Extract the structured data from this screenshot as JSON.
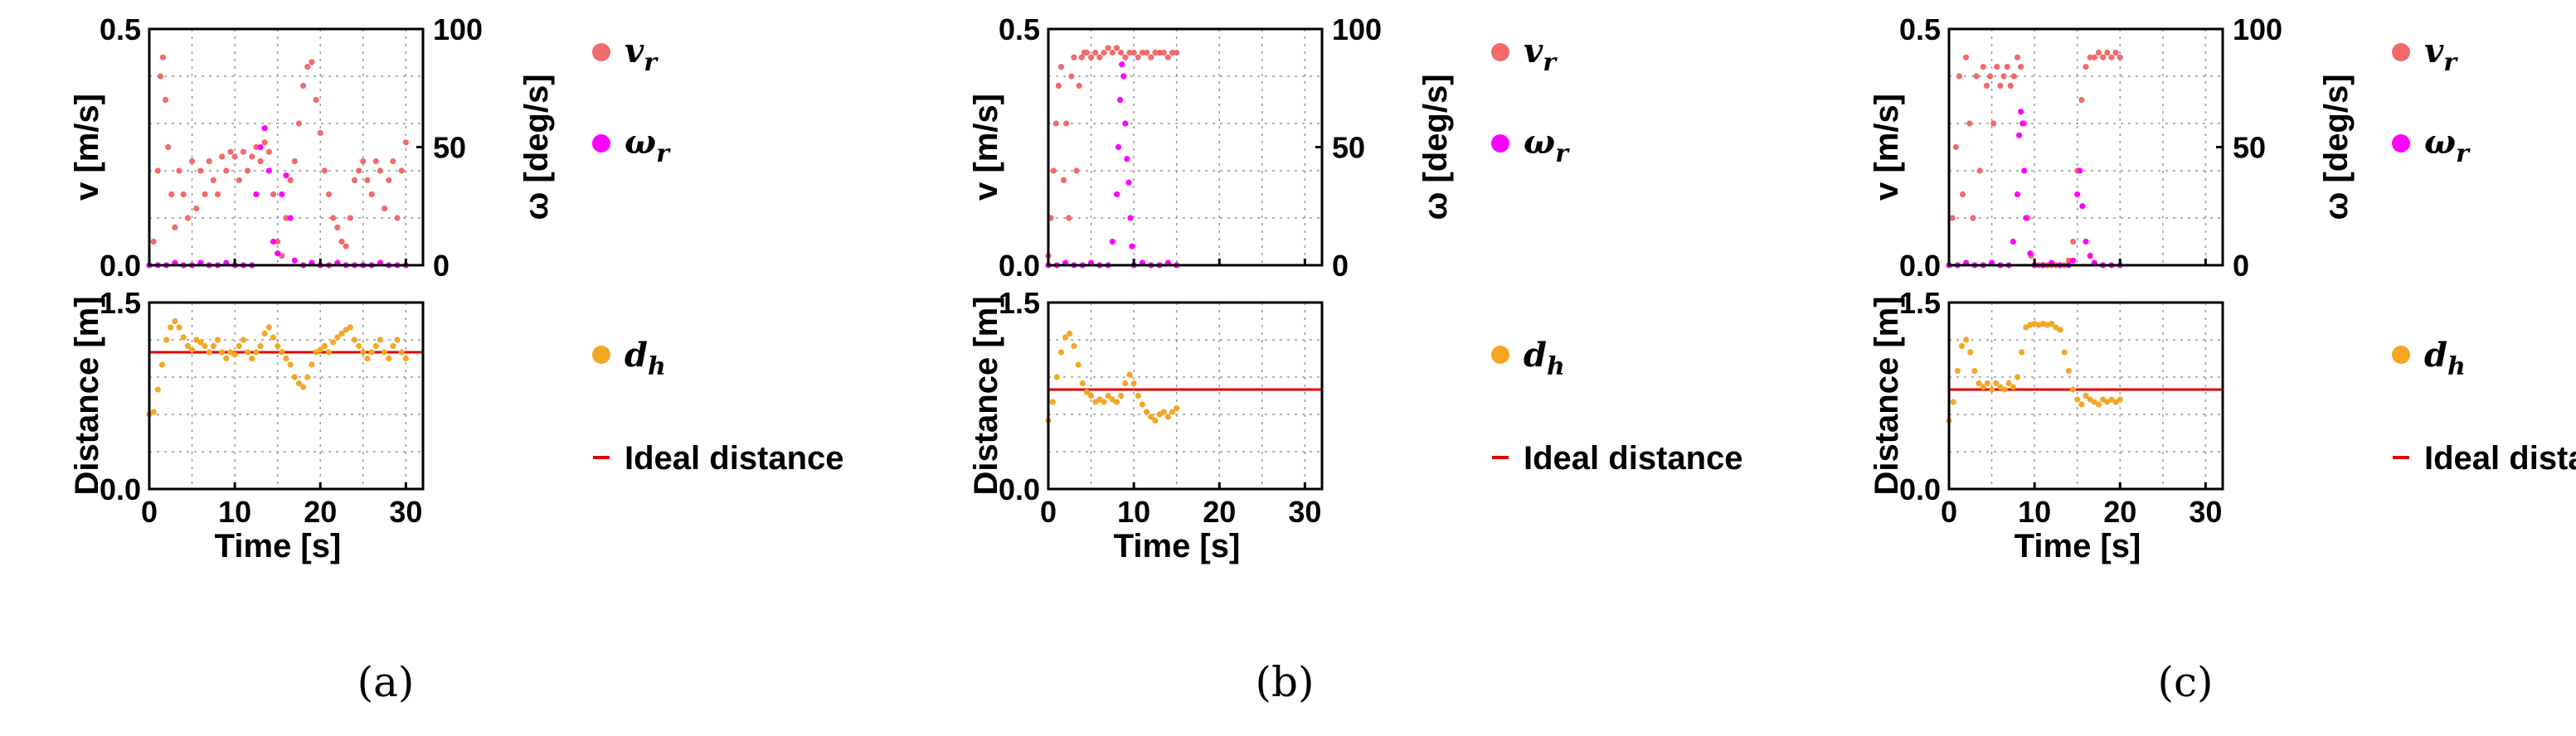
{
  "panels": [
    {
      "caption": "(a)",
      "top": {
        "type": "scatter",
        "xlim": [
          0,
          32
        ],
        "ylim_left": [
          0,
          0.5
        ],
        "ylim_right": [
          0,
          100
        ],
        "yticks_left": [
          "0.0",
          "0.5"
        ],
        "yticks_right": [
          "0",
          "50",
          "100"
        ],
        "ylabel_left": "v [m/s]",
        "ylabel_right": "ω [deg/s]",
        "series": [
          {
            "name": "v_r",
            "axis": "left",
            "color": "#f26a6a",
            "x": [
              0,
              0.5,
              1,
              1.3,
              1.6,
              1.9,
              2.2,
              2.6,
              3,
              3.5,
              4,
              4.5,
              5,
              5.5,
              6,
              6.5,
              7,
              7.5,
              8,
              8.5,
              9,
              9.5,
              10,
              10.5,
              11,
              11.5,
              12,
              12.5,
              13,
              13.5,
              14,
              14.5,
              15,
              15.5,
              16,
              16.5,
              17,
              17.5,
              18,
              18.5,
              19,
              19.5,
              20,
              20.5,
              21,
              21.5,
              22,
              22.5,
              23,
              23.5,
              24,
              24.5,
              25,
              25.5,
              26,
              26.5,
              27,
              27.5,
              28,
              28.5,
              29,
              29.5,
              30
            ],
            "y": [
              0,
              0.05,
              0.2,
              0.4,
              0.44,
              0.35,
              0.25,
              0.15,
              0.08,
              0.2,
              0.15,
              0.1,
              0.22,
              0.12,
              0.2,
              0.15,
              0.22,
              0.18,
              0.15,
              0.23,
              0.2,
              0.24,
              0.23,
              0.18,
              0.24,
              0.2,
              0.23,
              0.25,
              0.22,
              0.26,
              0.24,
              0.15,
              0.05,
              0.02,
              0.1,
              0.18,
              0.22,
              0.3,
              0.38,
              0.42,
              0.43,
              0.35,
              0.28,
              0.2,
              0.15,
              0.1,
              0.08,
              0.05,
              0.04,
              0.1,
              0.18,
              0.2,
              0.22,
              0.18,
              0.15,
              0.22,
              0.2,
              0.12,
              0.18,
              0.22,
              0.1,
              0.2,
              0.26
            ]
          },
          {
            "name": "ω_r",
            "axis": "right",
            "color": "#ff00ff",
            "x": [
              0,
              1,
              2,
              3,
              4,
              5,
              6,
              7,
              8,
              9,
              10,
              11,
              12,
              12.5,
              13,
              13.5,
              14,
              14.5,
              15,
              15.5,
              16,
              16.5,
              17,
              18,
              19,
              20,
              21,
              22,
              23,
              24,
              25,
              26,
              27,
              28,
              29,
              30
            ],
            "y": [
              0,
              0,
              0,
              1,
              0,
              0,
              1,
              0,
              0,
              1,
              0,
              0,
              0,
              30,
              50,
              58,
              40,
              10,
              5,
              30,
              38,
              20,
              2,
              0,
              1,
              0,
              0,
              1,
              0,
              0,
              0,
              0,
              1,
              0,
              0,
              0
            ]
          }
        ],
        "legend": [
          "v_r",
          "ω_r"
        ]
      },
      "bottom": {
        "type": "scatter",
        "xlim": [
          0,
          32
        ],
        "ylim": [
          0,
          1.5
        ],
        "yticks": [
          "0.0",
          "1.5"
        ],
        "xticks": [
          "0",
          "10",
          "20",
          "30"
        ],
        "ylabel": "Distance [m]",
        "xlabel": "Time [s]",
        "ideal": 1.1,
        "series": [
          {
            "name": "d_h",
            "color": "#f5a623",
            "x": [
              0,
              0.5,
              1,
              1.5,
              2,
              2.5,
              3,
              3.5,
              4,
              4.5,
              5,
              5.5,
              6,
              6.5,
              7,
              7.5,
              8,
              8.5,
              9,
              9.5,
              10,
              10.5,
              11,
              11.5,
              12,
              12.5,
              13,
              13.5,
              14,
              14.5,
              15,
              15.5,
              16,
              16.5,
              17,
              17.5,
              18,
              18.5,
              19,
              19.5,
              20,
              20.5,
              21,
              21.5,
              22,
              22.5,
              23,
              23.5,
              24,
              24.5,
              25,
              25.5,
              26,
              26.5,
              27,
              27.5,
              28,
              28.5,
              29,
              29.5,
              30
            ],
            "y": [
              0.6,
              0.62,
              0.8,
              1.0,
              1.2,
              1.3,
              1.35,
              1.3,
              1.22,
              1.15,
              1.12,
              1.2,
              1.18,
              1.15,
              1.1,
              1.15,
              1.2,
              1.1,
              1.05,
              1.1,
              1.08,
              1.15,
              1.2,
              1.1,
              1.05,
              1.1,
              1.15,
              1.25,
              1.3,
              1.22,
              1.15,
              1.1,
              1.05,
              1.0,
              0.9,
              0.85,
              0.82,
              0.9,
              1.0,
              1.1,
              1.12,
              1.15,
              1.1,
              1.18,
              1.22,
              1.25,
              1.28,
              1.3,
              1.2,
              1.15,
              1.1,
              1.05,
              1.1,
              1.15,
              1.2,
              1.1,
              1.05,
              1.15,
              1.2,
              1.1,
              1.05
            ]
          }
        ],
        "legend": [
          "d_h",
          "Ideal distance"
        ]
      }
    },
    {
      "caption": "(b)",
      "top": {
        "type": "scatter",
        "xlim": [
          0,
          32
        ],
        "ylim_left": [
          0,
          0.5
        ],
        "ylim_right": [
          0,
          100
        ],
        "yticks_left": [
          "0.0",
          "0.5"
        ],
        "yticks_right": [
          "0",
          "50",
          "100"
        ],
        "ylabel_left": "v [m/s]",
        "ylabel_right": "ω [deg/s]",
        "series": [
          {
            "name": "v_r",
            "axis": "left",
            "color": "#f26a6a",
            "x": [
              0,
              0.3,
              0.6,
              0.9,
              1.2,
              1.5,
              1.8,
              2.1,
              2.4,
              2.7,
              3,
              3.3,
              3.6,
              3.9,
              4.2,
              4.5,
              5,
              5.5,
              6,
              6.5,
              7,
              7.5,
              8,
              8.5,
              9,
              9.5,
              10,
              10.5,
              11,
              11.5,
              12,
              12.5,
              13,
              13.5,
              14,
              14.5,
              15
            ],
            "y": [
              0.02,
              0.1,
              0.2,
              0.3,
              0.38,
              0.42,
              0.18,
              0.3,
              0.1,
              0.4,
              0.44,
              0.2,
              0.38,
              0.44,
              0.45,
              0.45,
              0.44,
              0.45,
              0.44,
              0.45,
              0.46,
              0.45,
              0.46,
              0.45,
              0.44,
              0.45,
              0.45,
              0.44,
              0.45,
              0.45,
              0.44,
              0.45,
              0.45,
              0.45,
              0.44,
              0.45,
              0.45
            ]
          },
          {
            "name": "ω_r",
            "axis": "right",
            "color": "#ff00ff",
            "x": [
              0,
              1,
              2,
              3,
              4,
              5,
              6,
              7,
              7.5,
              8,
              8.2,
              8.4,
              8.6,
              8.8,
              9,
              9.2,
              9.4,
              9.6,
              9.8,
              10,
              11,
              12,
              13,
              14,
              15
            ],
            "y": [
              0,
              0,
              1,
              0,
              0,
              1,
              0,
              0,
              10,
              30,
              50,
              70,
              85,
              80,
              60,
              45,
              35,
              20,
              8,
              0,
              1,
              0,
              0,
              1,
              0
            ]
          }
        ],
        "legend": [
          "v_r",
          "ω_r"
        ]
      },
      "bottom": {
        "type": "scatter",
        "xlim": [
          0,
          32
        ],
        "ylim": [
          0,
          1.5
        ],
        "yticks": [
          "0.0",
          "1.5"
        ],
        "xticks": [
          "0",
          "10",
          "20",
          "30"
        ],
        "ylabel": "Distance [m]",
        "xlabel": "Time [s]",
        "ideal": 0.8,
        "series": [
          {
            "name": "d_h",
            "color": "#f5a623",
            "x": [
              0,
              0.5,
              1,
              1.5,
              2,
              2.5,
              3,
              3.5,
              4,
              4.5,
              5,
              5.5,
              6,
              6.5,
              7,
              7.5,
              8,
              8.5,
              9,
              9.5,
              10,
              10.5,
              11,
              11.5,
              12,
              12.5,
              13,
              13.5,
              14,
              14.5,
              15
            ],
            "y": [
              0.55,
              0.7,
              0.9,
              1.1,
              1.22,
              1.25,
              1.15,
              1.0,
              0.85,
              0.78,
              0.75,
              0.7,
              0.72,
              0.7,
              0.75,
              0.72,
              0.7,
              0.75,
              0.85,
              0.92,
              0.85,
              0.75,
              0.68,
              0.62,
              0.58,
              0.55,
              0.6,
              0.62,
              0.58,
              0.62,
              0.65
            ]
          }
        ],
        "legend": [
          "d_h",
          "Ideal distance"
        ]
      }
    },
    {
      "caption": "(c)",
      "top": {
        "type": "scatter",
        "xlim": [
          0,
          32
        ],
        "ylim_left": [
          0,
          0.5
        ],
        "ylim_right": [
          0,
          100
        ],
        "yticks_left": [
          "0.0",
          "0.5"
        ],
        "yticks_right": [
          "0",
          "50",
          "100"
        ],
        "ylabel_left": "v [m/s]",
        "ylabel_right": "ω [deg/s]",
        "series": [
          {
            "name": "v_r",
            "axis": "left",
            "color": "#f26a6a",
            "x": [
              0,
              0.4,
              0.8,
              1.2,
              1.6,
              2,
              2.4,
              2.8,
              3.2,
              3.6,
              4,
              4.4,
              4.8,
              5.2,
              5.6,
              6,
              6.4,
              6.8,
              7.2,
              7.6,
              8,
              8.4,
              8.8,
              9.2,
              9.6,
              10,
              10.5,
              11,
              11.5,
              12,
              12.5,
              13,
              13.5,
              14,
              14.5,
              15,
              15.5,
              16,
              16.5,
              17,
              17.5,
              18,
              18.5,
              19,
              19.5,
              20
            ],
            "y": [
              0,
              0.1,
              0.25,
              0.4,
              0.15,
              0.44,
              0.3,
              0.1,
              0.4,
              0.2,
              0.42,
              0.38,
              0.4,
              0.3,
              0.42,
              0.38,
              0.4,
              0.42,
              0.38,
              0.4,
              0.44,
              0.42,
              0.3,
              0.1,
              0.02,
              0,
              0,
              0,
              0,
              0,
              0,
              0,
              0,
              0.01,
              0.05,
              0.2,
              0.35,
              0.42,
              0.44,
              0.44,
              0.45,
              0.44,
              0.45,
              0.44,
              0.45,
              0.44
            ]
          },
          {
            "name": "ω_r",
            "axis": "right",
            "color": "#ff00ff",
            "x": [
              0,
              1,
              2,
              3,
              4,
              5,
              6,
              7,
              7.5,
              8,
              8.2,
              8.4,
              8.6,
              8.8,
              9,
              9.5,
              10,
              11,
              12,
              13,
              14,
              14.5,
              15,
              15.3,
              15.6,
              16,
              16.5,
              17,
              18,
              19,
              20
            ],
            "y": [
              0,
              0,
              1,
              0,
              0,
              1,
              0,
              0,
              10,
              30,
              55,
              65,
              60,
              40,
              20,
              5,
              0,
              0,
              1,
              0,
              0,
              2,
              30,
              40,
              25,
              10,
              4,
              1,
              0,
              0,
              0
            ]
          }
        ],
        "legend": [
          "v_r",
          "ω_r"
        ]
      },
      "bottom": {
        "type": "scatter",
        "xlim": [
          0,
          32
        ],
        "ylim": [
          0,
          1.5
        ],
        "yticks": [
          "0.0",
          "1.5"
        ],
        "xticks": [
          "0",
          "10",
          "20",
          "30"
        ],
        "ylabel": "Distance [m]",
        "xlabel": "Time [s]",
        "ideal": 0.8,
        "series": [
          {
            "name": "d_h",
            "color": "#f5a623",
            "x": [
              0,
              0.5,
              1,
              1.5,
              2,
              2.5,
              3,
              3.5,
              4,
              4.5,
              5,
              5.5,
              6,
              6.5,
              7,
              7.5,
              8,
              8.5,
              9,
              9.5,
              10,
              10.5,
              11,
              11.5,
              12,
              12.5,
              13,
              13.5,
              14,
              14.5,
              15,
              15.5,
              16,
              16.5,
              17,
              17.5,
              18,
              18.5,
              19,
              19.5,
              20
            ],
            "y": [
              0.55,
              0.7,
              0.95,
              1.15,
              1.2,
              1.1,
              0.95,
              0.85,
              0.82,
              0.85,
              0.8,
              0.85,
              0.82,
              0.8,
              0.85,
              0.82,
              0.9,
              1.1,
              1.3,
              1.32,
              1.33,
              1.32,
              1.33,
              1.32,
              1.33,
              1.3,
              1.28,
              1.1,
              0.95,
              0.8,
              0.72,
              0.68,
              0.75,
              0.72,
              0.7,
              0.68,
              0.72,
              0.7,
              0.72,
              0.7,
              0.72
            ]
          }
        ],
        "legend": [
          "d_h",
          "Ideal distance"
        ]
      }
    }
  ]
}
